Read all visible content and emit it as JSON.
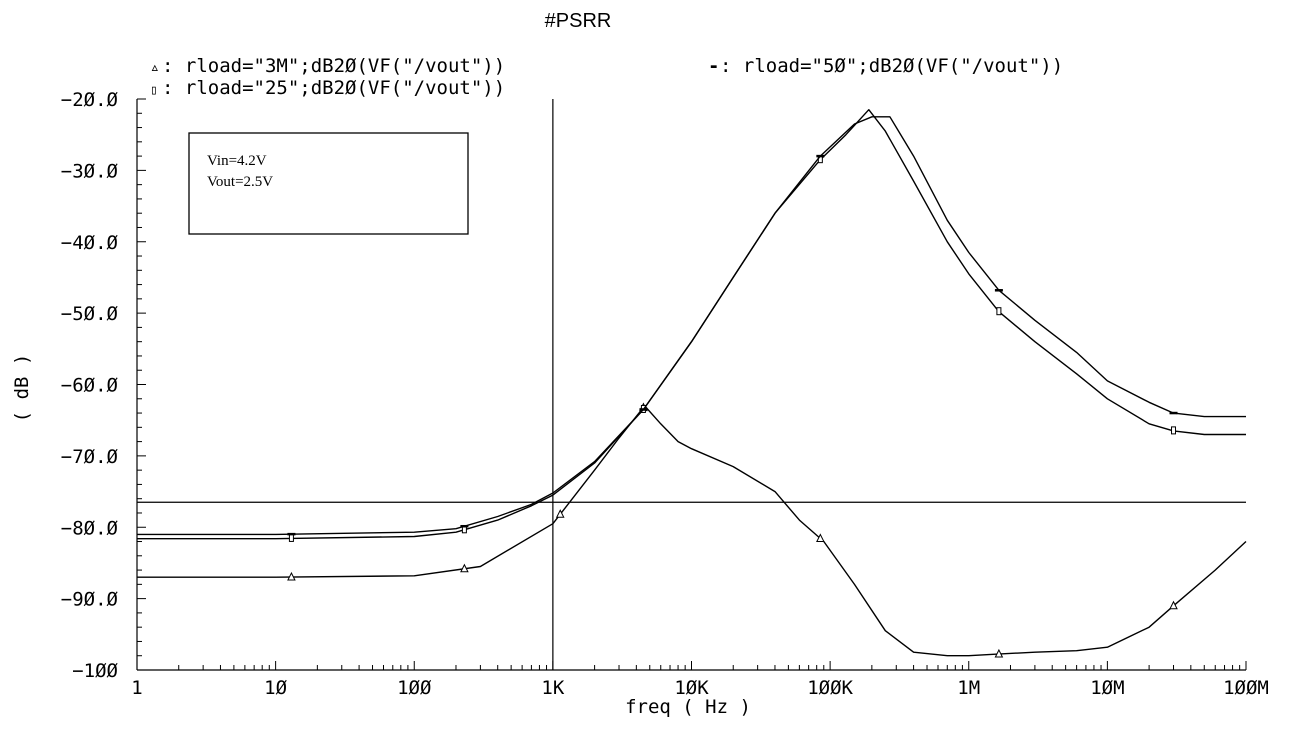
{
  "chart_data": {
    "type": "line",
    "title": "#PSRR",
    "xlabel": "freq ( Hz )",
    "ylabel": "( dB )",
    "xscale": "log",
    "xlim": [
      1,
      100000000
    ],
    "ylim": [
      -100,
      -20
    ],
    "x_ticks": [
      {
        "value": 1,
        "label": "1"
      },
      {
        "value": 10,
        "label": "1Ø"
      },
      {
        "value": 100,
        "label": "1ØØ"
      },
      {
        "value": 1000,
        "label": "1K"
      },
      {
        "value": 10000,
        "label": "1ØK"
      },
      {
        "value": 100000,
        "label": "1ØØK"
      },
      {
        "value": 1000000,
        "label": "1M"
      },
      {
        "value": 10000000,
        "label": "1ØM"
      },
      {
        "value": 100000000,
        "label": "1ØØM"
      }
    ],
    "y_ticks": [
      {
        "value": -20,
        "label": "−2Ø.Ø"
      },
      {
        "value": -30,
        "label": "−3Ø.Ø"
      },
      {
        "value": -40,
        "label": "−4Ø.Ø"
      },
      {
        "value": -50,
        "label": "−5Ø.Ø"
      },
      {
        "value": -60,
        "label": "−6Ø.Ø"
      },
      {
        "value": -70,
        "label": "−7Ø.Ø"
      },
      {
        "value": -80,
        "label": "−8Ø.Ø"
      },
      {
        "value": -90,
        "label": "−9Ø.Ø"
      },
      {
        "value": -100,
        "label": "−1ØØ"
      }
    ],
    "grid": false,
    "legend_position": "top",
    "legend": [
      {
        "symbol": "▵",
        "label": ": rload=\"3M\";dB2Ø(VF(\"/vout\"))"
      },
      {
        "symbol": "▯",
        "label": ": rload=\"25\";dB2Ø(VF(\"/vout\"))"
      },
      {
        "symbol": "-",
        "label": ": rload=\"5Ø\";dB2Ø(VF(\"/vout\"))"
      }
    ],
    "annotation": {
      "lines": [
        "Vin=4.2V",
        "Vout=2.5V"
      ]
    },
    "cursor": {
      "x": 1000,
      "y": -76.5
    },
    "series": [
      {
        "name": "rload=\"3M\";dB20(VF(\"/vout\"))",
        "marker": "triangle",
        "x": [
          1,
          10,
          100,
          300,
          1000,
          2000,
          3000,
          4600,
          6000,
          8000,
          10000,
          20000,
          40000,
          60000,
          90000,
          150000,
          250000,
          400000,
          700000,
          1000000,
          1500000,
          3000000,
          6000000,
          10000000,
          20000000,
          30000000,
          60000000,
          100000000
        ],
        "y": [
          -87.0,
          -87.0,
          -86.8,
          -85.5,
          -79.5,
          -72.0,
          -67.5,
          -63.0,
          -65.5,
          -68.0,
          -69.0,
          -71.5,
          -75.0,
          -79.0,
          -82.0,
          -88.0,
          -94.5,
          -97.5,
          -98.0,
          -98.0,
          -97.8,
          -97.5,
          -97.3,
          -96.8,
          -94.0,
          -91.0,
          -86.0,
          -82.0
        ],
        "markers_x": [
          13,
          230,
          1130,
          4500,
          85000,
          1650000,
          30000000
        ]
      },
      {
        "name": "rload=\"25\";dB20(VF(\"/vout\"))",
        "marker": "rect",
        "x": [
          1,
          10,
          100,
          200,
          400,
          700,
          1000,
          2000,
          4500,
          10000,
          20000,
          40000,
          85000,
          130000,
          190000,
          250000,
          400000,
          700000,
          1000000,
          1650000,
          3000000,
          6000000,
          10000000,
          20000000,
          30000000,
          50000000,
          100000000
        ],
        "y": [
          -81.6,
          -81.6,
          -81.3,
          -80.7,
          -79.0,
          -77.0,
          -75.5,
          -71.0,
          -63.5,
          -54.0,
          -45.0,
          -36.0,
          -28.5,
          -25.0,
          -21.5,
          -24.5,
          -31.5,
          -40.0,
          -44.5,
          -49.8,
          -54.0,
          -58.5,
          -62.0,
          -65.5,
          -66.5,
          -67.0,
          -67.0
        ],
        "markers_x": [
          13,
          230,
          4500,
          85000,
          1650000,
          30000000
        ]
      },
      {
        "name": "rload=\"50\";dB20(VF(\"/vout\"))",
        "marker": "dash",
        "x": [
          1,
          10,
          100,
          200,
          400,
          700,
          1000,
          2000,
          4500,
          10000,
          20000,
          40000,
          85000,
          150000,
          200000,
          270000,
          400000,
          700000,
          1000000,
          1650000,
          3000000,
          6000000,
          10000000,
          20000000,
          30000000,
          50000000,
          100000000
        ],
        "y": [
          -81.0,
          -81.0,
          -80.7,
          -80.2,
          -78.5,
          -76.8,
          -75.2,
          -70.8,
          -63.5,
          -54.0,
          -45.0,
          -36.0,
          -28.0,
          -23.5,
          -22.5,
          -22.5,
          -28.0,
          -37.0,
          -41.5,
          -46.8,
          -51.0,
          -55.5,
          -59.5,
          -62.5,
          -64.0,
          -64.5,
          -64.5
        ],
        "markers_x": [
          13,
          230,
          4500,
          85000,
          1650000,
          30000000
        ]
      }
    ]
  }
}
